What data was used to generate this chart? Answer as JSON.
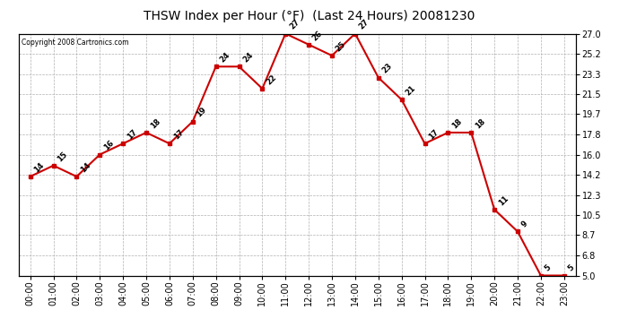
{
  "title": "THSW Index per Hour (°F)  (Last 24 Hours) 20081230",
  "copyright": "Copyright 2008 Cartronics.com",
  "hours": [
    "00:00",
    "01:00",
    "02:00",
    "03:00",
    "04:00",
    "05:00",
    "06:00",
    "07:00",
    "08:00",
    "09:00",
    "10:00",
    "11:00",
    "12:00",
    "13:00",
    "14:00",
    "15:00",
    "16:00",
    "17:00",
    "18:00",
    "19:00",
    "20:00",
    "21:00",
    "22:00",
    "23:00"
  ],
  "values": [
    14,
    15,
    14,
    16,
    17,
    18,
    17,
    19,
    24,
    24,
    22,
    27,
    26,
    25,
    27,
    23,
    21,
    17,
    18,
    18,
    11,
    9,
    5,
    5
  ],
  "ylim_min": 5.0,
  "ylim_max": 27.0,
  "yticks": [
    5.0,
    6.8,
    8.7,
    10.5,
    12.3,
    14.2,
    16.0,
    17.8,
    19.7,
    21.5,
    23.3,
    25.2,
    27.0
  ],
  "ytick_labels": [
    "5.0",
    "6.8",
    "8.7",
    "10.5",
    "12.3",
    "14.2",
    "16.0",
    "17.8",
    "19.7",
    "21.5",
    "23.3",
    "25.2",
    "27.0"
  ],
  "line_color": "#cc0000",
  "marker_color": "#cc0000",
  "bg_color": "#ffffff",
  "plot_bg_color": "#ffffff",
  "grid_color": "#b0b0b0",
  "label_fontsize": 7,
  "title_fontsize": 10,
  "copyright_fontsize": 5.5
}
